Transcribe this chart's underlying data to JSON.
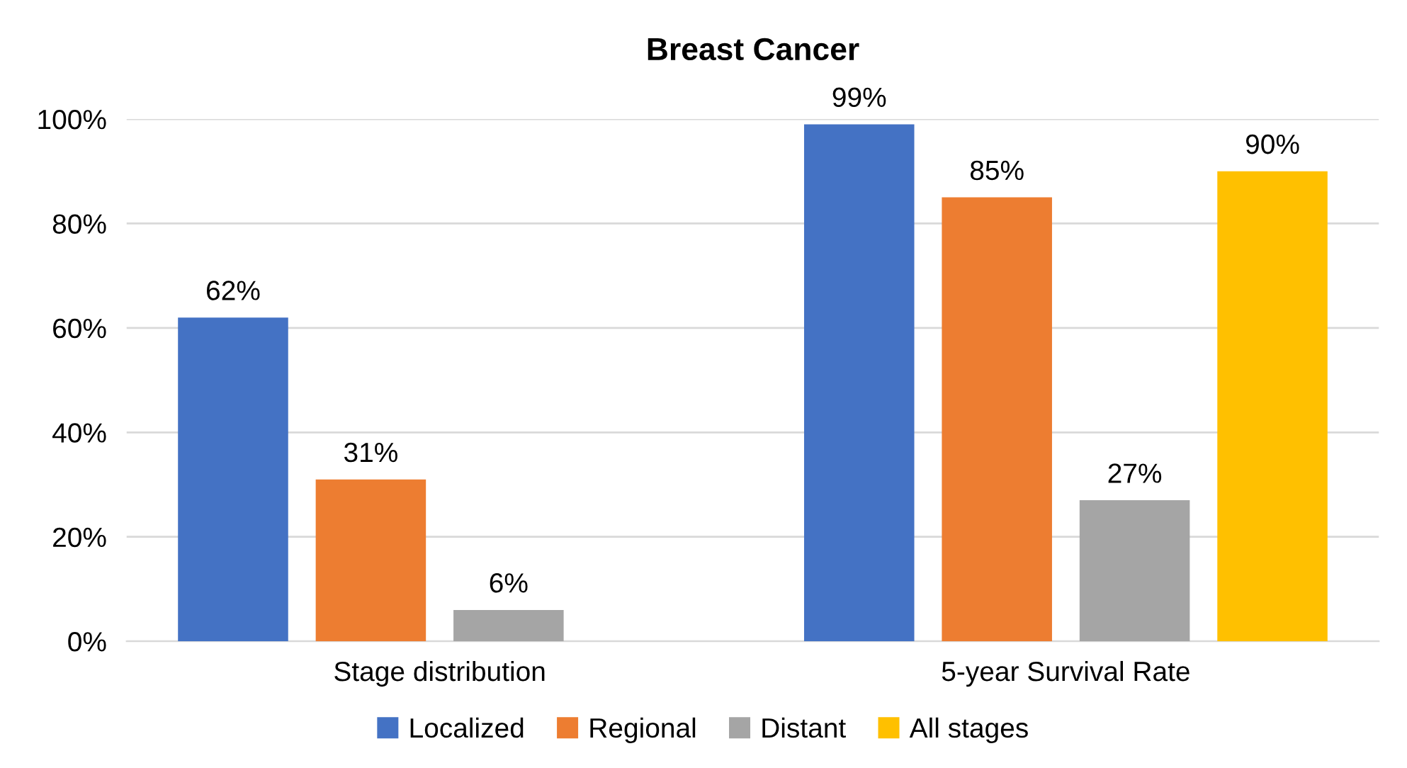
{
  "chart_data": {
    "type": "bar",
    "title": "Breast Cancer",
    "categories": [
      "Stage distribution",
      "5-year Survival Rate"
    ],
    "series": [
      {
        "name": "Localized",
        "color": "#4472c4",
        "values": [
          62,
          99
        ],
        "value_labels": [
          "62%",
          "99%"
        ]
      },
      {
        "name": "Regional",
        "color": "#ed7d31",
        "values": [
          31,
          85
        ],
        "value_labels": [
          "31%",
          "85%"
        ]
      },
      {
        "name": "Distant",
        "color": "#a5a5a5",
        "values": [
          6,
          27
        ],
        "value_labels": [
          "6%",
          "27%"
        ]
      },
      {
        "name": "All stages",
        "color": "#ffc000",
        "values": [
          null,
          90
        ],
        "value_labels": [
          null,
          "90%"
        ]
      }
    ],
    "ylim": [
      0,
      100
    ],
    "yticks": [
      {
        "value": 0,
        "label": "0%"
      },
      {
        "value": 20,
        "label": "20%"
      },
      {
        "value": 40,
        "label": "40%"
      },
      {
        "value": 60,
        "label": "60%"
      },
      {
        "value": 80,
        "label": "80%"
      },
      {
        "value": 100,
        "label": "100%"
      }
    ],
    "grid": "y",
    "legend": "bottom"
  }
}
